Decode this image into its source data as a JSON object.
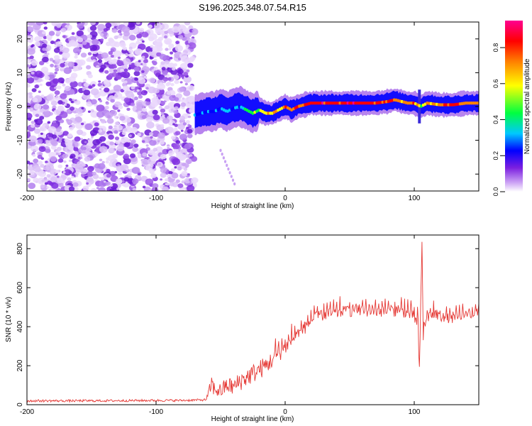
{
  "title": "S196.2025.348.07.54.R15",
  "chart_data": [
    {
      "type": "heatmap",
      "title": "S196.2025.348.07.54.R15",
      "xlabel": "Height of straight line (km)",
      "ylabel": "Frequency (Hz)",
      "xlim": [
        -200,
        150
      ],
      "ylim": [
        -25,
        25
      ],
      "xticks": [
        -200,
        -100,
        0,
        100
      ],
      "yticks": [
        -20,
        -10,
        0,
        10,
        20
      ],
      "noise_region_x": [
        -200,
        -70
      ],
      "signal_track": {
        "x": [
          -70,
          -65,
          -60,
          -55,
          -50,
          -45,
          -40,
          -35,
          -30,
          -25,
          -20,
          -15,
          -10,
          -5,
          0,
          5,
          10,
          15,
          20,
          30,
          40,
          50,
          60,
          70,
          80,
          85,
          90,
          95,
          100,
          105,
          110,
          120,
          130,
          140,
          150
        ],
        "freq": [
          -2.5,
          -2,
          -1.5,
          -1.5,
          -0.5,
          -1.5,
          -0.5,
          0,
          -1,
          -2,
          -1,
          -2,
          -2,
          -1,
          0,
          -1,
          0,
          0.5,
          1,
          1,
          1,
          1,
          1,
          1,
          1.5,
          2,
          1.5,
          1,
          1,
          0,
          1,
          0.5,
          0.5,
          1,
          1
        ],
        "amplitude": [
          0.35,
          0.3,
          0.35,
          0.3,
          0.3,
          0.4,
          0.35,
          0.4,
          0.5,
          0.6,
          0.6,
          0.7,
          0.75,
          0.75,
          0.85,
          0.8,
          0.85,
          0.9,
          0.9,
          0.9,
          0.9,
          0.9,
          0.9,
          0.85,
          0.85,
          0.8,
          0.8,
          0.8,
          0.8,
          0.6,
          0.75,
          0.8,
          0.85,
          0.85,
          0.8
        ]
      },
      "colorbar": {
        "label": "Normalized spectral amplitude",
        "range": [
          0.0,
          0.95
        ],
        "ticks": [
          0.0,
          0.2,
          0.4,
          0.6,
          0.8
        ],
        "tick_labels": [
          "0.0",
          "0.2",
          "0.4",
          "0.6",
          "0.8"
        ],
        "colors": [
          "#ffffff",
          "#7b1fe0",
          "#0000ff",
          "#00e0ff",
          "#00ff00",
          "#ffff00",
          "#ff8000",
          "#ff0000",
          "#ff0090"
        ]
      }
    },
    {
      "type": "line",
      "xlabel": "Height of straight line (km)",
      "ylabel": "SNR (10 * v/v)",
      "xlim": [
        -200,
        150
      ],
      "ylim": [
        0,
        870
      ],
      "xticks": [
        -200,
        -100,
        0,
        100
      ],
      "yticks": [
        0,
        200,
        400,
        600,
        800
      ],
      "line_color": "#e53935",
      "series": [
        {
          "name": "SNR",
          "x": [
            -200,
            -150,
            -100,
            -80,
            -62,
            -60,
            -57,
            -55,
            -50,
            -45,
            -40,
            -35,
            -30,
            -25,
            -20,
            -15,
            -10,
            -5,
            0,
            5,
            10,
            15,
            20,
            25,
            30,
            40,
            50,
            60,
            70,
            80,
            90,
            95,
            100,
            103,
            104,
            105,
            106,
            107,
            110,
            115,
            120,
            130,
            140,
            150
          ],
          "y": [
            20,
            20,
            22,
            22,
            25,
            40,
            110,
            80,
            70,
            100,
            90,
            120,
            140,
            160,
            180,
            200,
            230,
            260,
            290,
            330,
            360,
            390,
            430,
            450,
            460,
            470,
            480,
            480,
            480,
            480,
            480,
            470,
            450,
            400,
            150,
            480,
            840,
            350,
            450,
            460,
            450,
            440,
            460,
            470
          ],
          "spread": [
            12,
            12,
            12,
            12,
            12,
            40,
            90,
            80,
            80,
            90,
            90,
            100,
            100,
            100,
            100,
            100,
            90,
            80,
            80,
            70,
            60,
            60,
            60,
            60,
            60,
            60,
            60,
            60,
            60,
            60,
            60,
            60,
            60,
            80,
            100,
            60,
            30,
            100,
            60,
            60,
            50,
            50,
            50,
            50
          ]
        }
      ]
    }
  ]
}
